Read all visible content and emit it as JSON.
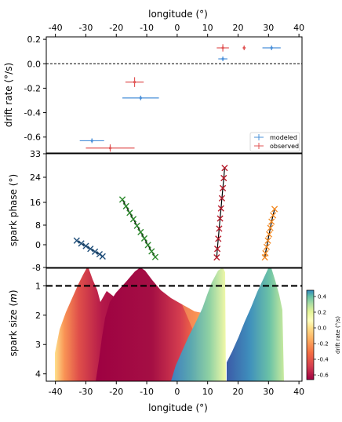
{
  "chart_data": [
    {
      "type": "scatter",
      "panel": "drift-rate",
      "xlabel": "longitude (°)",
      "ylabel": "drift rate (°/s)",
      "xlim": [
        -43,
        41
      ],
      "ylim": [
        -0.73,
        0.22
      ],
      "x_ticks": [
        "-40",
        "-30",
        "-20",
        "-10",
        "0",
        "10",
        "20",
        "30",
        "40"
      ],
      "y_ticks": [
        "0.2",
        "0.0",
        "-0.2",
        "-0.4",
        "-0.6"
      ],
      "reference_line": {
        "y": 0.0,
        "style": "dashed"
      },
      "legend_position": "lower-right",
      "series": [
        {
          "name": "modeled",
          "color": "#4a90d9",
          "points": [
            {
              "x": -28,
              "y": -0.63,
              "xerr": 4,
              "yerr": 0.0
            },
            {
              "x": -12,
              "y": -0.28,
              "xerr": 6,
              "yerr": 0.0
            },
            {
              "x": 15,
              "y": 0.04,
              "xerr": 1.5,
              "yerr": 0.0
            },
            {
              "x": 31,
              "y": 0.13,
              "xerr": 3,
              "yerr": 0.0
            }
          ]
        },
        {
          "name": "observed",
          "color": "#e05555",
          "points": [
            {
              "x": -22,
              "y": -0.69,
              "xerr": 8,
              "yerr": 0.03
            },
            {
              "x": -14,
              "y": -0.15,
              "xerr": 3,
              "yerr": 0.04
            },
            {
              "x": 15,
              "y": 0.13,
              "xerr": 2,
              "yerr": 0.03
            },
            {
              "x": 22,
              "y": 0.13,
              "xerr": 0.5,
              "yerr": 0.01
            }
          ]
        }
      ]
    },
    {
      "type": "scatter",
      "panel": "spark-phase",
      "ylabel": "spark phase (°)",
      "xlim": [
        -43,
        41
      ],
      "ylim": [
        -3,
        33
      ],
      "y_ticks": [
        "33",
        "24",
        "16",
        "8",
        "0",
        "-8"
      ],
      "series": [
        {
          "color": "#1f4e79",
          "points": [
            {
              "x": -33,
              "y": 5.5
            },
            {
              "x": -31.5,
              "y": 4.6
            },
            {
              "x": -30,
              "y": 3.8
            },
            {
              "x": -28.5,
              "y": 2.9
            },
            {
              "x": -27,
              "y": 2.0
            },
            {
              "x": -25.5,
              "y": 1.2
            },
            {
              "x": -24.5,
              "y": 0.5
            }
          ]
        },
        {
          "color": "#2d8a2d",
          "points": [
            {
              "x": -18,
              "y": 18.5
            },
            {
              "x": -16.8,
              "y": 16.4
            },
            {
              "x": -15.6,
              "y": 14.3
            },
            {
              "x": -14.4,
              "y": 12.3
            },
            {
              "x": -13.2,
              "y": 10.2
            },
            {
              "x": -12,
              "y": 8.2
            },
            {
              "x": -10.8,
              "y": 6.2
            },
            {
              "x": -9.6,
              "y": 4.1
            },
            {
              "x": -8.4,
              "y": 2.1
            },
            {
              "x": -7.2,
              "y": 0.3
            }
          ]
        },
        {
          "color": "#b71c2c",
          "points": [
            {
              "x": 15.6,
              "y": 28.5
            },
            {
              "x": 15.3,
              "y": 25.3
            },
            {
              "x": 15.0,
              "y": 22.1
            },
            {
              "x": 14.7,
              "y": 18.9
            },
            {
              "x": 14.4,
              "y": 15.7
            },
            {
              "x": 14.1,
              "y": 12.5
            },
            {
              "x": 13.8,
              "y": 9.3
            },
            {
              "x": 13.5,
              "y": 6.1
            },
            {
              "x": 13.2,
              "y": 2.9
            },
            {
              "x": 13.0,
              "y": 0.2
            }
          ]
        },
        {
          "color": "#f28c28",
          "points": [
            {
              "x": 32,
              "y": 15.5
            },
            {
              "x": 31.5,
              "y": 13.5
            },
            {
              "x": 31.0,
              "y": 11.5
            },
            {
              "x": 30.6,
              "y": 9.5
            },
            {
              "x": 30.2,
              "y": 7.5
            },
            {
              "x": 29.8,
              "y": 5.5
            },
            {
              "x": 29.4,
              "y": 3.5
            },
            {
              "x": 29.0,
              "y": 1.5
            },
            {
              "x": 28.8,
              "y": 0.2
            }
          ]
        }
      ]
    },
    {
      "type": "area",
      "panel": "spark-size",
      "xlabel": "longitude (°)",
      "ylabel": "spark size (m)",
      "xlim": [
        -43,
        41
      ],
      "ylim": [
        4.25,
        0.4
      ],
      "y_ticks": [
        "1",
        "2",
        "3",
        "4"
      ],
      "x_ticks": [
        "-40",
        "-30",
        "-20",
        "-10",
        "0",
        "10",
        "20",
        "30",
        "40"
      ],
      "reference_line": {
        "y": 1.0,
        "style": "dashed"
      },
      "colorbar": {
        "label": "drift rate (°/s)",
        "ticks": [
          "0.4",
          "0.2",
          "0.0",
          "-0.2",
          "-0.4",
          "-0.6"
        ],
        "range": [
          -0.66,
          0.48
        ],
        "colormap": "Spectral"
      }
    }
  ]
}
